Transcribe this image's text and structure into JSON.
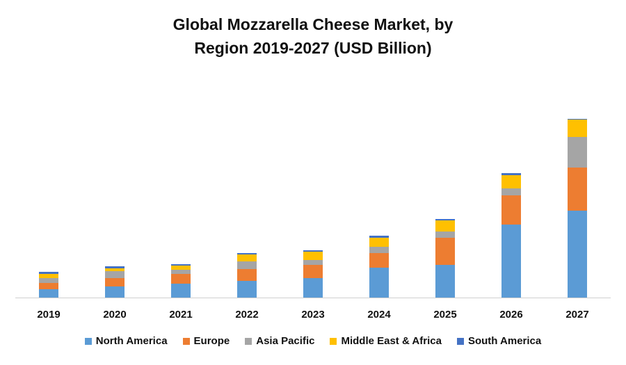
{
  "chart_data": {
    "type": "stacked_bar",
    "title": "Global Mozzarella Cheese Market, by Region 2019-2027 (USD Billion)",
    "categories": [
      "2019",
      "2020",
      "2021",
      "2022",
      "2023",
      "2024",
      "2025",
      "2026",
      "2027"
    ],
    "series": [
      {
        "name": "North America",
        "color": "#5b9bd5",
        "values": [
          1.2,
          1.6,
          2.0,
          2.4,
          2.8,
          4.3,
          4.7,
          10.5,
          12.5
        ]
      },
      {
        "name": "Europe",
        "color": "#ed7d31",
        "values": [
          0.9,
          1.2,
          1.4,
          1.7,
          1.9,
          2.1,
          3.9,
          4.2,
          6.2
        ]
      },
      {
        "name": "Asia Pacific",
        "color": "#a5a5a5",
        "values": [
          0.7,
          1.0,
          0.6,
          1.1,
          0.7,
          0.9,
          0.9,
          1.0,
          4.4
        ]
      },
      {
        "name": "Middle East & Africa",
        "color": "#ffc000",
        "values": [
          0.6,
          0.4,
          0.6,
          1.0,
          1.2,
          1.3,
          1.6,
          1.9,
          2.5
        ]
      },
      {
        "name": "South America",
        "color": "#4472c4",
        "values": [
          0.3,
          0.3,
          0.2,
          0.2,
          0.2,
          0.3,
          0.2,
          0.3,
          0.1
        ]
      }
    ],
    "ylim": [
      0,
      30
    ]
  }
}
